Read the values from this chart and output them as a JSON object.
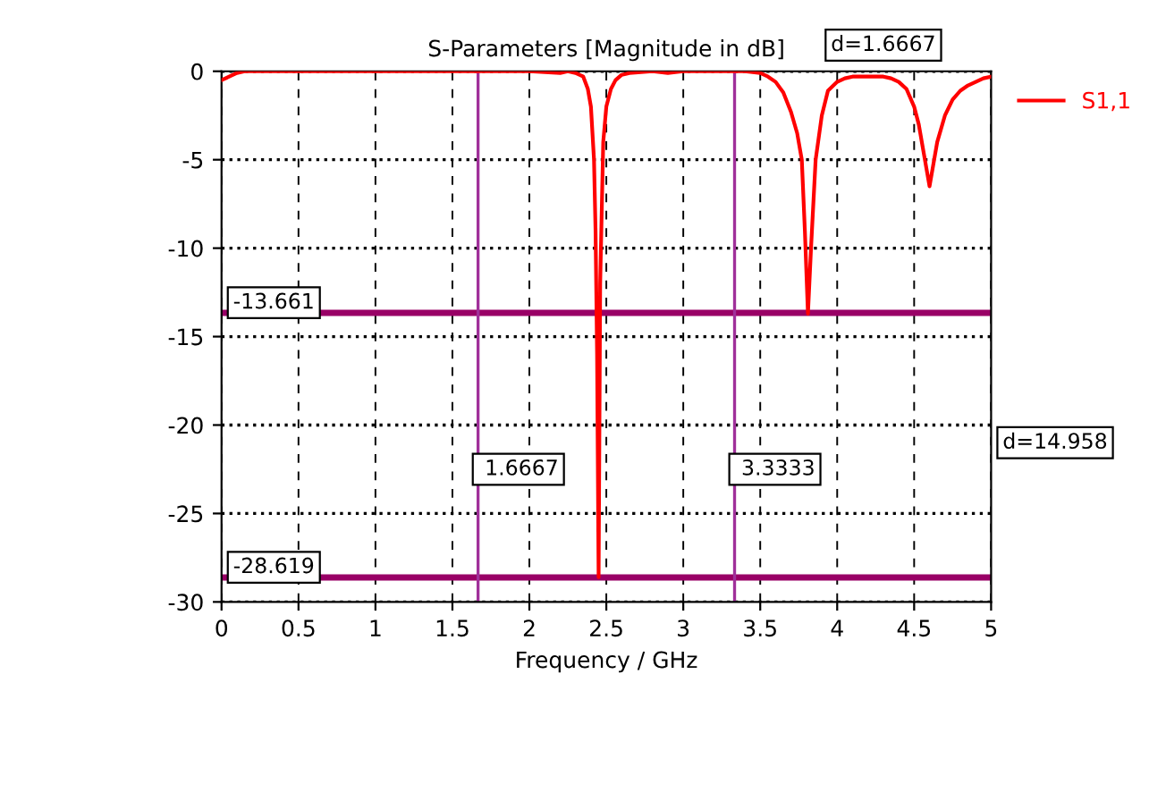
{
  "chart_data": {
    "type": "line",
    "title": "S-Parameters [Magnitude in dB]",
    "xlabel": "Frequency / GHz",
    "series": [
      {
        "name": "S1,1",
        "color": "#ff0000",
        "x": [
          0,
          0.05,
          0.1,
          0.15,
          0.5,
          1.0,
          1.5,
          2.0,
          2.2,
          2.25,
          2.3,
          2.35,
          2.38,
          2.4,
          2.42,
          2.43,
          2.44,
          2.45,
          2.46,
          2.48,
          2.5,
          2.53,
          2.56,
          2.6,
          2.65,
          2.8,
          2.9,
          3.0,
          3.2,
          3.4,
          3.5,
          3.55,
          3.6,
          3.65,
          3.7,
          3.74,
          3.77,
          3.79,
          3.81,
          3.83,
          3.86,
          3.9,
          3.94,
          4.0,
          4.05,
          4.1,
          4.2,
          4.3,
          4.35,
          4.4,
          4.45,
          4.5,
          4.53,
          4.56,
          4.58,
          4.6,
          4.62,
          4.65,
          4.7,
          4.75,
          4.8,
          4.85,
          4.9,
          4.95,
          5.0
        ],
        "values": [
          -0.5,
          -0.3,
          -0.1,
          0,
          0,
          0,
          0,
          0,
          -0.1,
          0,
          -0.1,
          -0.3,
          -1,
          -2,
          -5,
          -9,
          -16,
          -28.6,
          -12,
          -4,
          -2,
          -1,
          -0.5,
          -0.2,
          -0.1,
          0,
          -0.1,
          0,
          0,
          0,
          -0.1,
          -0.3,
          -0.6,
          -1.2,
          -2.3,
          -3.5,
          -5,
          -9,
          -13.7,
          -10,
          -5,
          -2.5,
          -1.1,
          -0.6,
          -0.4,
          -0.3,
          -0.3,
          -0.3,
          -0.4,
          -0.6,
          -1,
          -2,
          -3,
          -4.5,
          -5.5,
          -6.5,
          -5.5,
          -4,
          -2.5,
          -1.6,
          -1.1,
          -0.8,
          -0.6,
          -0.4,
          -0.3
        ]
      }
    ],
    "xlim": [
      0,
      5
    ],
    "xticks": [
      0,
      0.5,
      1,
      1.5,
      2,
      2.5,
      3,
      3.5,
      4,
      4.5,
      5
    ],
    "ylim": [
      -30,
      0
    ],
    "yticks": [
      0,
      -5,
      -10,
      -15,
      -20,
      -25,
      -30
    ],
    "ref_lines": [
      {
        "axis": "y",
        "value": -13.661,
        "label": "-13.661",
        "color": "#990066"
      },
      {
        "axis": "y",
        "value": -28.619,
        "label": "-28.619",
        "color": "#990066"
      },
      {
        "axis": "x",
        "value": 1.6667,
        "label": "1.6667",
        "color": "#a0309a"
      },
      {
        "axis": "x",
        "value": 3.3333,
        "label": "3.3333",
        "color": "#a0309a"
      }
    ],
    "annotations": [
      "d=1.6667",
      "d=14.958"
    ],
    "grid": true,
    "legend": "right",
    "marker": "none",
    "line_style": "solid"
  }
}
